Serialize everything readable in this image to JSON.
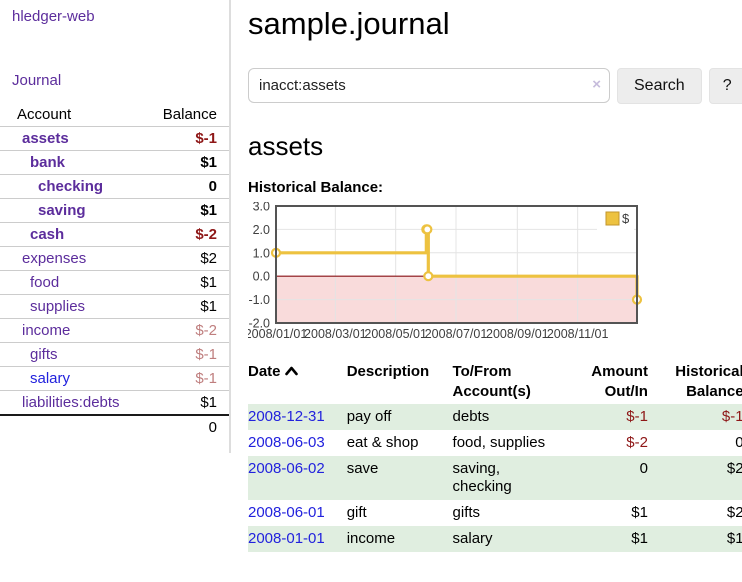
{
  "app": {
    "title": "hledger-web",
    "nav_journal": "Journal"
  },
  "sidebar": {
    "accounts_header": {
      "account": "Account",
      "balance": "Balance"
    },
    "accounts": [
      {
        "name": "assets",
        "indent": 1,
        "bold": true,
        "blue": false,
        "balance": "$-1",
        "balance_style": "neg-strong"
      },
      {
        "name": "bank",
        "indent": 2,
        "bold": true,
        "blue": false,
        "balance": "$1",
        "balance_style": "pos"
      },
      {
        "name": "checking",
        "indent": 3,
        "bold": true,
        "blue": false,
        "balance": "0",
        "balance_style": "pos"
      },
      {
        "name": "saving",
        "indent": 3,
        "bold": true,
        "blue": false,
        "balance": "$1",
        "balance_style": "pos"
      },
      {
        "name": "cash",
        "indent": 2,
        "bold": true,
        "blue": false,
        "balance": "$-2",
        "balance_style": "neg-strong"
      },
      {
        "name": "expenses",
        "indent": 1,
        "bold": false,
        "blue": false,
        "balance": "$2",
        "balance_style": "pos"
      },
      {
        "name": "food",
        "indent": 2,
        "bold": false,
        "blue": false,
        "balance": "$1",
        "balance_style": "pos"
      },
      {
        "name": "supplies",
        "indent": 2,
        "bold": false,
        "blue": false,
        "balance": "$1",
        "balance_style": "pos"
      },
      {
        "name": "income",
        "indent": 1,
        "bold": false,
        "blue": false,
        "balance": "$-2",
        "balance_style": "neg-soft"
      },
      {
        "name": "gifts",
        "indent": 2,
        "bold": false,
        "blue": false,
        "balance": "$-1",
        "balance_style": "neg-soft"
      },
      {
        "name": "salary",
        "indent": 2,
        "bold": false,
        "blue": true,
        "balance": "$-1",
        "balance_style": "neg-soft"
      },
      {
        "name": "liabilities:debts",
        "indent": 1,
        "bold": false,
        "blue": false,
        "balance": "$1",
        "balance_style": "pos"
      }
    ],
    "total": "0"
  },
  "header": {
    "title": "sample.journal"
  },
  "search": {
    "value": "inacct:assets",
    "clear_label": "×",
    "button": "Search",
    "help_button": "?"
  },
  "main": {
    "heading": "assets",
    "chart_label": "Historical Balance:"
  },
  "chart_data": {
    "type": "line",
    "step": true,
    "title": "Historical Balance",
    "series": [
      {
        "name": "$",
        "points": [
          [
            "2008-01-01",
            1
          ],
          [
            "2008-06-01",
            2
          ],
          [
            "2008-06-02",
            2
          ],
          [
            "2008-06-03",
            0
          ],
          [
            "2008-12-31",
            -1
          ]
        ]
      }
    ],
    "series_color": "#edc240",
    "x_range": [
      "2008-01-01",
      "2008-12-31"
    ],
    "x_ticks": [
      "2008/01/01",
      "2008/03/01",
      "2008/05/01",
      "2008/07/01",
      "2008/09/01",
      "2008/11/01"
    ],
    "y_ticks": [
      3.0,
      2.0,
      1.0,
      0.0,
      -1.0,
      -2.0
    ],
    "ylim": [
      -2,
      3
    ],
    "grid": true,
    "legend_position": "top-right",
    "legend": [
      {
        "label": "$",
        "color": "#edc240"
      }
    ],
    "negative_region_color": "#f9dbdb",
    "zero_line_color": "#8b1015"
  },
  "register": {
    "headers": {
      "date": "Date",
      "description": "Description",
      "accounts": "To/From Account(s)",
      "amount": "Amount Out/In",
      "balance": "Historical Balance"
    },
    "rows": [
      {
        "date": "2008-12-31",
        "description": "pay off",
        "accounts": [
          "debts"
        ],
        "amount": "$-1",
        "amount_neg": true,
        "balance": "$-1",
        "balance_neg": true
      },
      {
        "date": "2008-06-03",
        "description": "eat & shop",
        "accounts": [
          "food, supplies"
        ],
        "amount": "$-2",
        "amount_neg": true,
        "balance": "0",
        "balance_neg": false
      },
      {
        "date": "2008-06-02",
        "description": "save",
        "accounts": [
          "saving,",
          "checking"
        ],
        "amount": "0",
        "amount_neg": false,
        "balance": "$2",
        "balance_neg": false
      },
      {
        "date": "2008-06-01",
        "description": "gift",
        "accounts": [
          "gifts"
        ],
        "amount": "$1",
        "amount_neg": false,
        "balance": "$2",
        "balance_neg": false
      },
      {
        "date": "2008-01-01",
        "description": "income",
        "accounts": [
          "salary"
        ],
        "amount": "$1",
        "amount_neg": false,
        "balance": "$1",
        "balance_neg": false
      }
    ]
  }
}
